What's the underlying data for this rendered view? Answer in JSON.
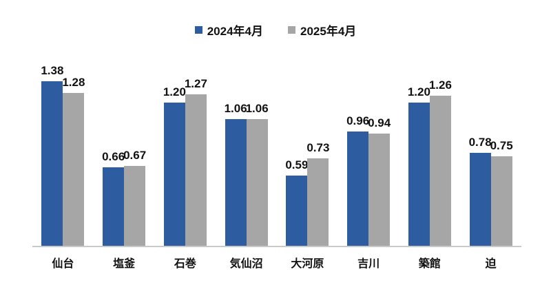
{
  "chart_data": {
    "type": "bar",
    "title": "",
    "xlabel": "",
    "ylabel": "",
    "categories": [
      "仙台",
      "塩釜",
      "石巻",
      "気仙沼",
      "大河原",
      "吉川",
      "築館",
      "迫"
    ],
    "series": [
      {
        "name": "2024年4月",
        "color": "#2E5CA0",
        "values": [
          1.38,
          0.66,
          1.2,
          1.06,
          0.59,
          0.96,
          1.2,
          0.78
        ]
      },
      {
        "name": "2025年4月",
        "color": "#A6A6A6",
        "values": [
          1.28,
          0.67,
          1.27,
          1.06,
          0.73,
          0.94,
          1.26,
          0.75
        ]
      }
    ],
    "ylim": [
      0,
      1.5
    ],
    "grid": false,
    "y_axis_visible": false,
    "legend_position": "top-center",
    "value_labels": true,
    "value_label_decimals": 2,
    "colors": {
      "background": "#FFFFFF",
      "axis_line": "#C9C9C9",
      "text": "#111111"
    }
  }
}
